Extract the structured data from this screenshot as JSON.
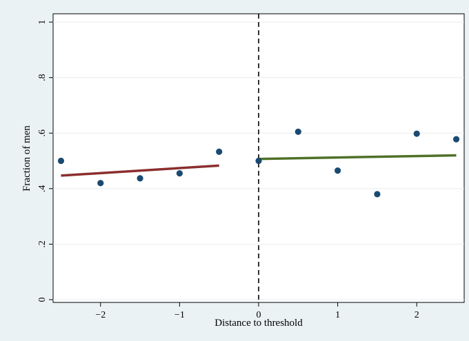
{
  "chart_data": {
    "type": "scatter",
    "title": "",
    "xlabel": "Distance to threshold",
    "ylabel": "Fraction of men",
    "xlim": [
      -2.6,
      2.6
    ],
    "ylim": [
      -0.01,
      1.03
    ],
    "xticks": [
      {
        "value": -2,
        "label": "−2"
      },
      {
        "value": -1,
        "label": "−1"
      },
      {
        "value": 0,
        "label": "0"
      },
      {
        "value": 1,
        "label": "1"
      },
      {
        "value": 2,
        "label": "2"
      }
    ],
    "yticks": [
      {
        "value": 0,
        "label": "0"
      },
      {
        "value": 0.2,
        "label": ".2"
      },
      {
        "value": 0.4,
        "label": ".4"
      },
      {
        "value": 0.6,
        "label": ".6"
      },
      {
        "value": 0.8,
        "label": ".8"
      },
      {
        "value": 1,
        "label": "1"
      }
    ],
    "grid": true,
    "threshold_line": {
      "x": 0,
      "style": "dashed",
      "color": "#000000"
    },
    "points": {
      "color": "#1a4a72",
      "x": [
        -2.5,
        -2.0,
        -1.5,
        -1.0,
        -0.5,
        0.0,
        0.5,
        1.0,
        1.5,
        2.0,
        2.5
      ],
      "y": [
        0.5,
        0.42,
        0.437,
        0.455,
        0.533,
        0.5,
        0.605,
        0.465,
        0.38,
        0.598,
        0.578
      ]
    },
    "fit_lines": [
      {
        "color": "#8b2e2e",
        "x": [
          -2.5,
          -0.5
        ],
        "y": [
          0.447,
          0.483
        ]
      },
      {
        "color": "#4f7028",
        "x": [
          0.0,
          2.5
        ],
        "y": [
          0.507,
          0.52
        ]
      }
    ]
  }
}
